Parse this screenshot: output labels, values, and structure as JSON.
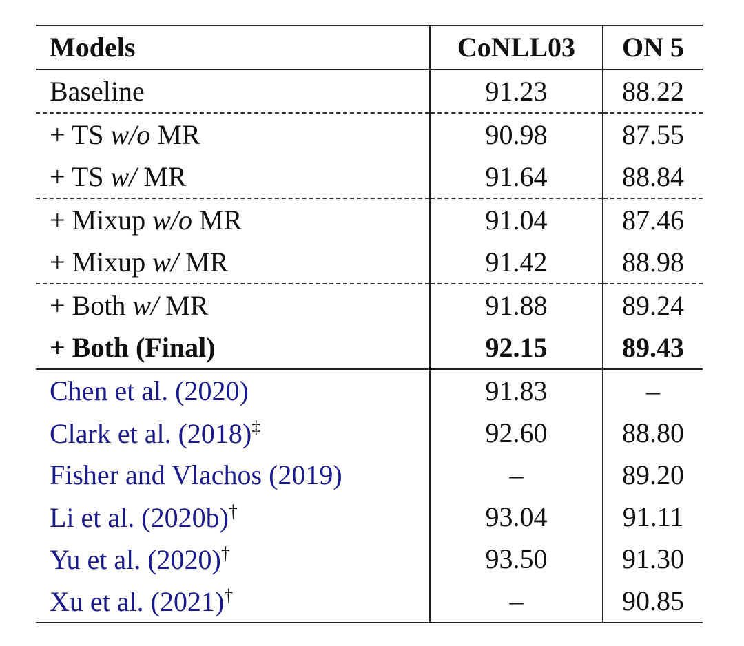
{
  "table": {
    "header": [
      "Models",
      "CoNLL03",
      "ON 5"
    ],
    "sections": [
      {
        "border_top": "solid",
        "rows": [
          {
            "model": [
              {
                "text": "Baseline",
                "style": "normal"
              }
            ],
            "values": [
              "91.23",
              "88.22"
            ]
          }
        ]
      },
      {
        "border_top": "dashed",
        "rows": [
          {
            "model": [
              {
                "text": "+ TS ",
                "style": "normal"
              },
              {
                "text": "w/o",
                "style": "italic"
              },
              {
                "text": " MR",
                "style": "normal"
              }
            ],
            "values": [
              "90.98",
              "87.55"
            ]
          },
          {
            "model": [
              {
                "text": "+ TS ",
                "style": "normal"
              },
              {
                "text": "w/",
                "style": "italic"
              },
              {
                "text": " MR",
                "style": "normal"
              }
            ],
            "values": [
              "91.64",
              "88.84"
            ]
          }
        ]
      },
      {
        "border_top": "dashed",
        "rows": [
          {
            "model": [
              {
                "text": "+ Mixup ",
                "style": "normal"
              },
              {
                "text": "w/o",
                "style": "italic"
              },
              {
                "text": " MR",
                "style": "normal"
              }
            ],
            "values": [
              "91.04",
              "87.46"
            ]
          },
          {
            "model": [
              {
                "text": "+ Mixup ",
                "style": "normal"
              },
              {
                "text": "w/",
                "style": "italic"
              },
              {
                "text": " MR",
                "style": "normal"
              }
            ],
            "values": [
              "91.42",
              "88.98"
            ]
          }
        ]
      },
      {
        "border_top": "dashed",
        "rows": [
          {
            "model": [
              {
                "text": "+ Both ",
                "style": "normal"
              },
              {
                "text": "w/",
                "style": "italic"
              },
              {
                "text": " MR",
                "style": "normal"
              }
            ],
            "values": [
              "91.88",
              "89.24"
            ]
          },
          {
            "bold": true,
            "model": [
              {
                "text": "+ Both (Final)",
                "style": "normal"
              }
            ],
            "values": [
              "92.15",
              "89.43"
            ]
          }
        ]
      },
      {
        "border_top": "solid",
        "rows": [
          {
            "model": [
              {
                "text": "Chen et al. (2020)",
                "style": "cite"
              }
            ],
            "values": [
              "91.83",
              "–"
            ]
          },
          {
            "model": [
              {
                "text": "Clark et al. (2018)",
                "style": "cite"
              },
              {
                "text": "‡",
                "style": "sup"
              }
            ],
            "values": [
              "92.60",
              "88.80"
            ]
          },
          {
            "model": [
              {
                "text": "Fisher and Vlachos (2019)",
                "style": "cite"
              }
            ],
            "values": [
              "–",
              "89.20"
            ]
          },
          {
            "model": [
              {
                "text": "Li et al. (2020b)",
                "style": "cite"
              },
              {
                "text": "†",
                "style": "sup"
              }
            ],
            "values": [
              "93.04",
              "91.11"
            ]
          },
          {
            "model": [
              {
                "text": "Yu et al. (2020)",
                "style": "cite"
              },
              {
                "text": "†",
                "style": "sup"
              }
            ],
            "values": [
              "93.50",
              "91.30"
            ]
          },
          {
            "model": [
              {
                "text": "Xu et al. (2021)",
                "style": "cite"
              },
              {
                "text": "†",
                "style": "sup"
              }
            ],
            "values": [
              "–",
              "90.85"
            ]
          }
        ]
      }
    ]
  }
}
